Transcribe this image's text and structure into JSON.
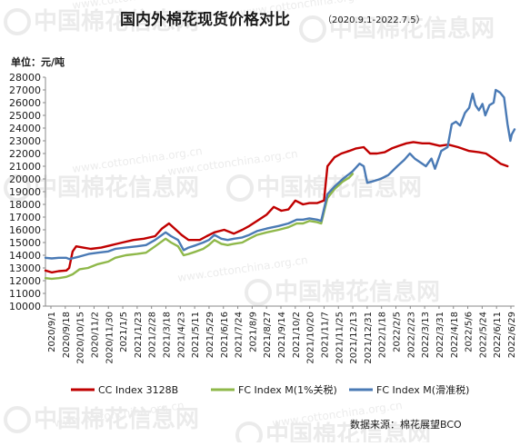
{
  "chart_data": {
    "type": "line",
    "title": "国内外棉花现货价格对比",
    "subtitle": "（2020.9.1-2022.7.5）",
    "unit_label": "单位：元/吨",
    "source": "数据来源：棉花展望BCO",
    "watermark": {
      "title": "中国棉花信息网",
      "url": "www.cottonchina.org.cn"
    },
    "ylim": [
      10000,
      28000
    ],
    "yticks": [
      10000,
      11000,
      12000,
      13000,
      14000,
      15000,
      16000,
      17000,
      18000,
      19000,
      20000,
      21000,
      22000,
      23000,
      24000,
      25000,
      26000,
      27000,
      28000
    ],
    "x_date_range": [
      "2020-09-01",
      "2022-07-05"
    ],
    "xtick_labels": [
      "2020/9/1",
      "2020/9/18",
      "2020/10/15",
      "2020/11/2",
      "2020/11/30",
      "2021/1/5",
      "2021/1/23",
      "2021/2/28",
      "2021/3/18",
      "2021/4/23",
      "2021/5/11",
      "2021/5/29",
      "2021/6/16",
      "2021/7/24",
      "2021/8/9",
      "2021/8/27",
      "2021/9/14",
      "2021/10/2",
      "2021/10/20",
      "2021/11/7",
      "2021/11/25",
      "2021/12/13",
      "2021/12/31",
      "2022/1/18",
      "2022/2/5",
      "2022/2/23",
      "2022/3/13",
      "2022/3/31",
      "2022/4/18",
      "2022/5/6",
      "2022/5/24",
      "2022/6/11",
      "2022/6/29"
    ],
    "grid": false,
    "legend_position": "bottom",
    "series": [
      {
        "name": "CC Index 3128B",
        "color": "#c00000",
        "points": [
          [
            "2020-09-01",
            12800
          ],
          [
            "2020-09-10",
            12650
          ],
          [
            "2020-09-20",
            12750
          ],
          [
            "2020-10-01",
            12800
          ],
          [
            "2020-10-05",
            13000
          ],
          [
            "2020-10-10",
            14300
          ],
          [
            "2020-10-15",
            14700
          ],
          [
            "2020-10-25",
            14600
          ],
          [
            "2020-11-05",
            14500
          ],
          [
            "2020-11-20",
            14600
          ],
          [
            "2020-12-05",
            14800
          ],
          [
            "2020-12-20",
            15000
          ],
          [
            "2021-01-05",
            15200
          ],
          [
            "2021-01-20",
            15300
          ],
          [
            "2021-02-05",
            15500
          ],
          [
            "2021-02-15",
            16100
          ],
          [
            "2021-02-25",
            16500
          ],
          [
            "2021-03-05",
            16100
          ],
          [
            "2021-03-15",
            15600
          ],
          [
            "2021-03-25",
            15200
          ],
          [
            "2021-04-10",
            15200
          ],
          [
            "2021-04-20",
            15500
          ],
          [
            "2021-05-01",
            15800
          ],
          [
            "2021-05-15",
            16000
          ],
          [
            "2021-05-29",
            15700
          ],
          [
            "2021-06-10",
            16000
          ],
          [
            "2021-06-20",
            16300
          ],
          [
            "2021-07-01",
            16700
          ],
          [
            "2021-07-15",
            17200
          ],
          [
            "2021-07-25",
            17800
          ],
          [
            "2021-08-05",
            17500
          ],
          [
            "2021-08-15",
            17600
          ],
          [
            "2021-08-25",
            18300
          ],
          [
            "2021-09-05",
            18000
          ],
          [
            "2021-09-14",
            18100
          ],
          [
            "2021-09-25",
            18100
          ],
          [
            "2021-10-05",
            18300
          ],
          [
            "2021-10-10",
            21000
          ],
          [
            "2021-10-20",
            21700
          ],
          [
            "2021-10-30",
            22000
          ],
          [
            "2021-11-10",
            22200
          ],
          [
            "2021-11-20",
            22400
          ],
          [
            "2021-12-01",
            22500
          ],
          [
            "2021-12-10",
            22000
          ],
          [
            "2021-12-20",
            22000
          ],
          [
            "2021-12-31",
            22100
          ],
          [
            "2022-01-10",
            22400
          ],
          [
            "2022-01-20",
            22600
          ],
          [
            "2022-01-31",
            22800
          ],
          [
            "2022-02-10",
            22900
          ],
          [
            "2022-02-23",
            22800
          ],
          [
            "2022-03-05",
            22800
          ],
          [
            "2022-03-20",
            22600
          ],
          [
            "2022-04-01",
            22700
          ],
          [
            "2022-04-15",
            22500
          ],
          [
            "2022-05-01",
            22200
          ],
          [
            "2022-05-15",
            22100
          ],
          [
            "2022-05-25",
            22000
          ],
          [
            "2022-06-05",
            21600
          ],
          [
            "2022-06-15",
            21200
          ],
          [
            "2022-06-25",
            21000
          ]
        ]
      },
      {
        "name": "FC Index M(1%关税)",
        "color": "#8fb84a",
        "points": [
          [
            "2020-09-01",
            12200
          ],
          [
            "2020-09-10",
            12150
          ],
          [
            "2020-09-20",
            12200
          ],
          [
            "2020-10-01",
            12300
          ],
          [
            "2020-10-10",
            12500
          ],
          [
            "2020-10-20",
            12900
          ],
          [
            "2020-11-01",
            13000
          ],
          [
            "2020-11-15",
            13300
          ],
          [
            "2020-11-30",
            13500
          ],
          [
            "2020-12-10",
            13800
          ],
          [
            "2020-12-25",
            14000
          ],
          [
            "2021-01-10",
            14100
          ],
          [
            "2021-01-23",
            14200
          ],
          [
            "2021-02-05",
            14700
          ],
          [
            "2021-02-20",
            15300
          ],
          [
            "2021-02-28",
            15000
          ],
          [
            "2021-03-10",
            14700
          ],
          [
            "2021-03-18",
            14000
          ],
          [
            "2021-03-25",
            14100
          ],
          [
            "2021-04-05",
            14300
          ],
          [
            "2021-04-15",
            14500
          ],
          [
            "2021-04-23",
            14800
          ],
          [
            "2021-05-01",
            15200
          ],
          [
            "2021-05-11",
            14900
          ],
          [
            "2021-05-20",
            14800
          ],
          [
            "2021-05-29",
            14900
          ],
          [
            "2021-06-10",
            15000
          ],
          [
            "2021-06-20",
            15300
          ],
          [
            "2021-07-01",
            15600
          ],
          [
            "2021-07-15",
            15800
          ],
          [
            "2021-08-01",
            16000
          ],
          [
            "2021-08-15",
            16200
          ],
          [
            "2021-08-27",
            16500
          ],
          [
            "2021-09-05",
            16500
          ],
          [
            "2021-09-14",
            16700
          ],
          [
            "2021-09-25",
            16600
          ],
          [
            "2021-10-01",
            16500
          ],
          [
            "2021-10-10",
            18500
          ],
          [
            "2021-10-20",
            19200
          ],
          [
            "2021-11-01",
            19800
          ],
          [
            "2021-11-10",
            20100
          ],
          [
            "2021-11-15",
            20400
          ]
        ]
      },
      {
        "name": "FC Index M(滑准税)",
        "color": "#4a7ab5",
        "points": [
          [
            "2020-09-01",
            13800
          ],
          [
            "2020-09-10",
            13750
          ],
          [
            "2020-09-20",
            13800
          ],
          [
            "2020-10-01",
            13800
          ],
          [
            "2020-10-05",
            13700
          ],
          [
            "2020-10-20",
            13900
          ],
          [
            "2020-11-02",
            14100
          ],
          [
            "2020-11-15",
            14200
          ],
          [
            "2020-11-30",
            14300
          ],
          [
            "2020-12-10",
            14500
          ],
          [
            "2020-12-25",
            14600
          ],
          [
            "2021-01-10",
            14700
          ],
          [
            "2021-01-23",
            14800
          ],
          [
            "2021-02-05",
            15200
          ],
          [
            "2021-02-20",
            15800
          ],
          [
            "2021-02-28",
            15500
          ],
          [
            "2021-03-10",
            15200
          ],
          [
            "2021-03-18",
            14400
          ],
          [
            "2021-03-25",
            14600
          ],
          [
            "2021-04-05",
            14800
          ],
          [
            "2021-04-15",
            15000
          ],
          [
            "2021-04-23",
            15200
          ],
          [
            "2021-05-01",
            15600
          ],
          [
            "2021-05-11",
            15300
          ],
          [
            "2021-05-20",
            15200
          ],
          [
            "2021-05-29",
            15300
          ],
          [
            "2021-06-10",
            15400
          ],
          [
            "2021-06-20",
            15600
          ],
          [
            "2021-07-01",
            15900
          ],
          [
            "2021-07-15",
            16100
          ],
          [
            "2021-08-01",
            16300
          ],
          [
            "2021-08-15",
            16500
          ],
          [
            "2021-08-27",
            16800
          ],
          [
            "2021-09-05",
            16800
          ],
          [
            "2021-09-14",
            16900
          ],
          [
            "2021-09-25",
            16800
          ],
          [
            "2021-10-01",
            16700
          ],
          [
            "2021-10-10",
            18800
          ],
          [
            "2021-10-20",
            19400
          ],
          [
            "2021-11-01",
            20000
          ],
          [
            "2021-11-15",
            20600
          ],
          [
            "2021-11-25",
            21200
          ],
          [
            "2021-12-01",
            21000
          ],
          [
            "2021-12-06",
            19700
          ],
          [
            "2021-12-13",
            19800
          ],
          [
            "2021-12-25",
            20000
          ],
          [
            "2022-01-05",
            20300
          ],
          [
            "2022-01-18",
            21000
          ],
          [
            "2022-01-28",
            21500
          ],
          [
            "2022-02-05",
            22000
          ],
          [
            "2022-02-12",
            21600
          ],
          [
            "2022-02-20",
            21300
          ],
          [
            "2022-02-28",
            21000
          ],
          [
            "2022-03-08",
            21600
          ],
          [
            "2022-03-13",
            20800
          ],
          [
            "2022-03-22",
            22200
          ],
          [
            "2022-03-31",
            22500
          ],
          [
            "2022-04-06",
            24300
          ],
          [
            "2022-04-12",
            24500
          ],
          [
            "2022-04-18",
            24200
          ],
          [
            "2022-04-25",
            25200
          ],
          [
            "2022-05-01",
            25600
          ],
          [
            "2022-05-06",
            26700
          ],
          [
            "2022-05-10",
            25800
          ],
          [
            "2022-05-15",
            25400
          ],
          [
            "2022-05-20",
            25900
          ],
          [
            "2022-05-24",
            25000
          ],
          [
            "2022-05-30",
            25800
          ],
          [
            "2022-06-05",
            26000
          ],
          [
            "2022-06-08",
            27000
          ],
          [
            "2022-06-14",
            26800
          ],
          [
            "2022-06-20",
            26400
          ],
          [
            "2022-06-25",
            24300
          ],
          [
            "2022-06-29",
            23000
          ],
          [
            "2022-07-01",
            23500
          ],
          [
            "2022-07-05",
            23900
          ]
        ]
      }
    ]
  }
}
